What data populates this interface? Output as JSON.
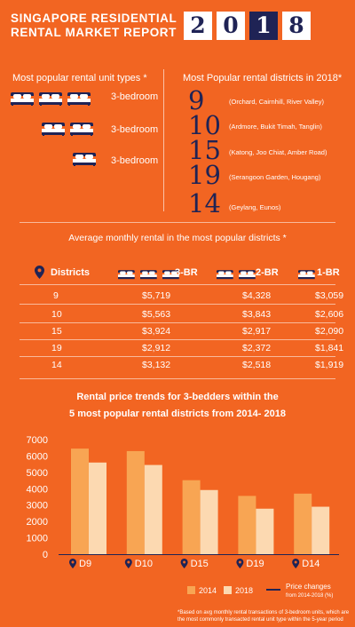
{
  "header": {
    "title_line1": "SINGAPORE RESIDENTIAL",
    "title_line2": "RENTAL MARKET REPORT",
    "year_digits": [
      "2",
      "0",
      "1",
      "8"
    ]
  },
  "left_panel": {
    "heading": "Most popular rental unit types *",
    "rows": [
      {
        "beds": 3,
        "label": "3-bedroom"
      },
      {
        "beds": 2,
        "label": "3-bedroom"
      },
      {
        "beds": 1,
        "label": "3-bedroom"
      }
    ]
  },
  "right_panel": {
    "heading": "Most Popular rental districts in 2018*",
    "districts": [
      {
        "num": "9",
        "areas": "(Orchard, Cairnhill, River Valley)"
      },
      {
        "num": "10",
        "areas": "(Ardmore, Bukit Timah, Tanglin)"
      },
      {
        "num": "15",
        "areas": "(Katong, Joo Chiat, Amber Road)"
      },
      {
        "num": "19",
        "areas": "(Serangoon Garden, Hougang)"
      },
      {
        "num": "14",
        "areas": "(Geylang, Eunos)"
      }
    ]
  },
  "table": {
    "heading": "Average monthly rental in the most popular districts *",
    "col_districts": "Districts",
    "col_3br": "3-BR",
    "col_2br": "2-BR",
    "col_1br": "1-BR",
    "rows": [
      {
        "district": "9",
        "br3": "$5,719",
        "br2": "$4,328",
        "br1": "$3,059"
      },
      {
        "district": "10",
        "br3": "$5,563",
        "br2": "$3,843",
        "br1": "$2,606"
      },
      {
        "district": "15",
        "br3": "$3,924",
        "br2": "$2,917",
        "br1": "$2,090"
      },
      {
        "district": "19",
        "br3": "$2,912",
        "br2": "$2,372",
        "br1": "$1,841"
      },
      {
        "district": "14",
        "br3": "$3,132",
        "br2": "$2,518",
        "br1": "$1,919"
      }
    ]
  },
  "chart_data": {
    "type": "bar",
    "title_line1": "Rental price trends for 3-bedders within the",
    "title_line2": "5 most popular rental districts from 2014- 2018",
    "categories": [
      "D9",
      "D10",
      "D15",
      "D19",
      "D14"
    ],
    "series": [
      {
        "name": "2014",
        "values": [
          6450,
          6300,
          4520,
          3560,
          3700
        ]
      },
      {
        "name": "2018",
        "values": [
          5600,
          5450,
          3920,
          2780,
          2900
        ]
      }
    ],
    "yticks": [
      "0",
      "1000",
      "2000",
      "3000",
      "4000",
      "5000",
      "6000",
      "7000"
    ],
    "ylim": [
      0,
      7000
    ],
    "legend_line_label": "Price changes",
    "legend_line_sub": "from 2014-2018 (%)",
    "legend_placement": "bottom",
    "colors": {
      "2014": "#f8a553",
      "2018": "#fcd9b1"
    }
  },
  "footnote": "*Based on avg monthly rental transactions of 3-bedroom units, which are the most commonly transacted rental unit type within the 5-year period",
  "colors": {
    "background": "#f26522",
    "navy": "#1f2355"
  }
}
